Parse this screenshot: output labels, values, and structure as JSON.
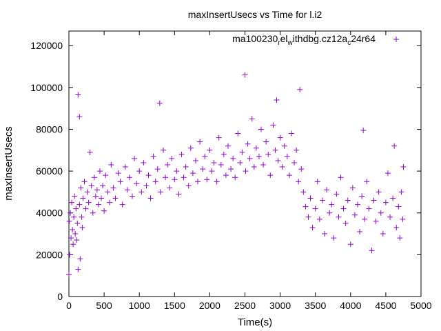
{
  "chart_data": {
    "type": "scatter",
    "title": "maxInsertUsecs vs Time for l.i2",
    "xlabel": "Time(s)",
    "ylabel": "maxInsertUsecs",
    "xlim": [
      0,
      5000
    ],
    "ylim": [
      0,
      127000
    ],
    "xticks": [
      0,
      500,
      1000,
      1500,
      2000,
      2500,
      3000,
      3500,
      4000,
      4500,
      5000
    ],
    "yticks": [
      0,
      20000,
      40000,
      60000,
      80000,
      100000,
      120000
    ],
    "grid": false,
    "legend_position": "top-right",
    "series": [
      {
        "name_parts": [
          "ma100230",
          "r",
          "el",
          "w",
          "ithdbg.cz12a",
          "c",
          "24r64"
        ],
        "color": "#9400d3",
        "marker": "plus",
        "points": [
          [
            0,
            10500
          ],
          [
            5,
            36000
          ],
          [
            10,
            20000
          ],
          [
            20,
            40000
          ],
          [
            30,
            28000
          ],
          [
            40,
            45000
          ],
          [
            50,
            32000
          ],
          [
            60,
            25000
          ],
          [
            70,
            38000
          ],
          [
            80,
            48000
          ],
          [
            90,
            30000
          ],
          [
            100,
            42000
          ],
          [
            110,
            27000
          ],
          [
            120,
            35000
          ],
          [
            130,
            96500
          ],
          [
            130,
            13000
          ],
          [
            150,
            86000
          ],
          [
            150,
            44000
          ],
          [
            160,
            18000
          ],
          [
            170,
            52000
          ],
          [
            180,
            38000
          ],
          [
            190,
            33000
          ],
          [
            200,
            47000
          ],
          [
            220,
            55000
          ],
          [
            240,
            42000
          ],
          [
            260,
            50000
          ],
          [
            280,
            45000
          ],
          [
            300,
            69000
          ],
          [
            320,
            53000
          ],
          [
            340,
            40000
          ],
          [
            360,
            57000
          ],
          [
            380,
            48000
          ],
          [
            400,
            51000
          ],
          [
            420,
            44000
          ],
          [
            440,
            60000
          ],
          [
            460,
            47000
          ],
          [
            480,
            53000
          ],
          [
            500,
            41000
          ],
          [
            520,
            58000
          ],
          [
            550,
            50000
          ],
          [
            580,
            45000
          ],
          [
            600,
            63000
          ],
          [
            630,
            52000
          ],
          [
            660,
            47000
          ],
          [
            700,
            59000
          ],
          [
            730,
            55000
          ],
          [
            760,
            44000
          ],
          [
            800,
            62000
          ],
          [
            830,
            51000
          ],
          [
            860,
            57000
          ],
          [
            900,
            48000
          ],
          [
            930,
            66000
          ],
          [
            960,
            54000
          ],
          [
            1000,
            60000
          ],
          [
            1030,
            50000
          ],
          [
            1060,
            64000
          ],
          [
            1100,
            53000
          ],
          [
            1130,
            58000
          ],
          [
            1160,
            47000
          ],
          [
            1200,
            67000
          ],
          [
            1230,
            55000
          ],
          [
            1260,
            61000
          ],
          [
            1290,
            92500
          ],
          [
            1300,
            50000
          ],
          [
            1340,
            70000
          ],
          [
            1370,
            57000
          ],
          [
            1400,
            63000
          ],
          [
            1430,
            52000
          ],
          [
            1460,
            66000
          ],
          [
            1500,
            56000
          ],
          [
            1530,
            60000
          ],
          [
            1560,
            49000
          ],
          [
            1600,
            68000
          ],
          [
            1630,
            57000
          ],
          [
            1660,
            62000
          ],
          [
            1700,
            53000
          ],
          [
            1730,
            71000
          ],
          [
            1760,
            59000
          ],
          [
            1800,
            65000
          ],
          [
            1830,
            55000
          ],
          [
            1860,
            74000
          ],
          [
            1900,
            61000
          ],
          [
            1930,
            67000
          ],
          [
            1960,
            56000
          ],
          [
            2000,
            70000
          ],
          [
            2030,
            60000
          ],
          [
            2060,
            64000
          ],
          [
            2100,
            55000
          ],
          [
            2130,
            76000
          ],
          [
            2160,
            63000
          ],
          [
            2200,
            68000
          ],
          [
            2230,
            58000
          ],
          [
            2260,
            72000
          ],
          [
            2300,
            61000
          ],
          [
            2330,
            66000
          ],
          [
            2360,
            57000
          ],
          [
            2400,
            78000
          ],
          [
            2430,
            64000
          ],
          [
            2460,
            69000
          ],
          [
            2500,
            106000
          ],
          [
            2510,
            60000
          ],
          [
            2540,
            73000
          ],
          [
            2570,
            66000
          ],
          [
            2600,
            85000
          ],
          [
            2630,
            62000
          ],
          [
            2660,
            71000
          ],
          [
            2700,
            67000
          ],
          [
            2730,
            80000
          ],
          [
            2760,
            63000
          ],
          [
            2800,
            74000
          ],
          [
            2830,
            68000
          ],
          [
            2860,
            58000
          ],
          [
            2900,
            82000
          ],
          [
            2930,
            70000
          ],
          [
            2950,
            94000
          ],
          [
            2970,
            65000
          ],
          [
            3000,
            76000
          ],
          [
            3030,
            62000
          ],
          [
            3060,
            72000
          ],
          [
            3100,
            67000
          ],
          [
            3130,
            58000
          ],
          [
            3160,
            78000
          ],
          [
            3200,
            64000
          ],
          [
            3230,
            70000
          ],
          [
            3260,
            55000
          ],
          [
            3280,
            99000
          ],
          [
            3300,
            61000
          ],
          [
            3330,
            50000
          ],
          [
            3360,
            43000
          ],
          [
            3400,
            38000
          ],
          [
            3430,
            47000
          ],
          [
            3460,
            33000
          ],
          [
            3500,
            42000
          ],
          [
            3530,
            55000
          ],
          [
            3560,
            37000
          ],
          [
            3600,
            46000
          ],
          [
            3630,
            30000
          ],
          [
            3660,
            51000
          ],
          [
            3700,
            40000
          ],
          [
            3730,
            44000
          ],
          [
            3760,
            28000
          ],
          [
            3800,
            49000
          ],
          [
            3830,
            38000
          ],
          [
            3860,
            57000
          ],
          [
            3900,
            42000
          ],
          [
            3930,
            35000
          ],
          [
            3960,
            46000
          ],
          [
            4000,
            25000
          ],
          [
            4030,
            52000
          ],
          [
            4060,
            39000
          ],
          [
            4100,
            44000
          ],
          [
            4130,
            31000
          ],
          [
            4160,
            48000
          ],
          [
            4180,
            79500
          ],
          [
            4200,
            37000
          ],
          [
            4230,
            55000
          ],
          [
            4260,
            42000
          ],
          [
            4300,
            22000
          ],
          [
            4330,
            46000
          ],
          [
            4360,
            36000
          ],
          [
            4400,
            50000
          ],
          [
            4430,
            40000
          ],
          [
            4460,
            30000
          ],
          [
            4500,
            45000
          ],
          [
            4530,
            59000
          ],
          [
            4560,
            38000
          ],
          [
            4600,
            47000
          ],
          [
            4620,
            72000
          ],
          [
            4650,
            33000
          ],
          [
            4680,
            43000
          ],
          [
            4700,
            28000
          ],
          [
            4720,
            50000
          ],
          [
            4740,
            37000
          ],
          [
            4750,
            62000
          ]
        ]
      }
    ]
  }
}
